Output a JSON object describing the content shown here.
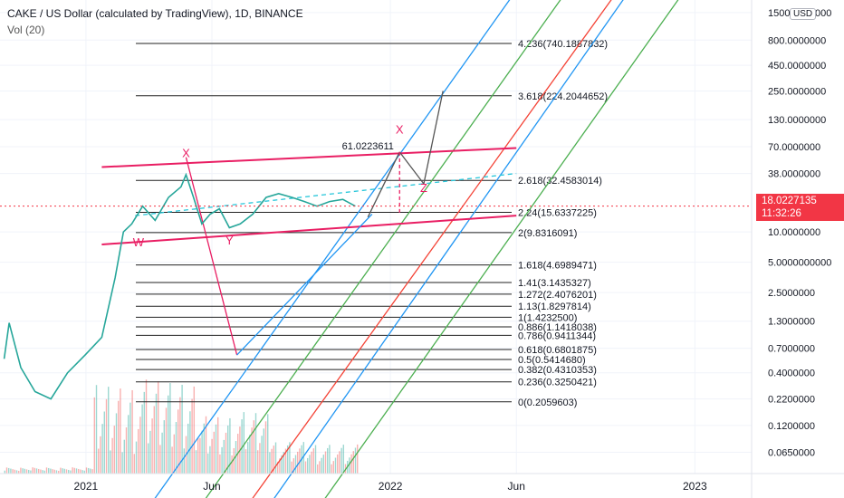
{
  "header": {
    "title": "CAKE / US Dollar (calculated by TradingView), 1D, BINANCE",
    "volume_label": "Vol (20)"
  },
  "price_axis": {
    "currency": "USD",
    "current_price": "18.0227135",
    "countdown": "11:32:26",
    "ticks": [
      "1500.0000000",
      "800.0000000",
      "450.0000000",
      "250.0000000",
      "130.0000000",
      "70.0000000",
      "38.0000000",
      "10.0000000",
      "5.0000000000",
      "2.5000000",
      "1.3000000",
      "0.7000000",
      "0.4000000",
      "0.2200000",
      "0.1200000",
      "0.0650000"
    ]
  },
  "time_axis": {
    "ticks": [
      "2021",
      "Jun",
      "2022",
      "Jun",
      "2023"
    ]
  },
  "chart_data": {
    "type": "line",
    "symbol": "CAKE/USD",
    "interval": "1D",
    "exchange": "BINANCE",
    "yscale": "log",
    "ylim": [
      0.04,
      2000
    ],
    "xlim": [
      "2020-09-20",
      "2023-03-10"
    ],
    "current_price": 18.0227135,
    "price_path": {
      "x": [
        "2020-09-25",
        "2020-10-01",
        "2020-10-15",
        "2020-11-01",
        "2020-11-20",
        "2020-12-10",
        "2020-12-31",
        "2021-01-20",
        "2021-02-05",
        "2021-02-15",
        "2021-02-25",
        "2021-03-10",
        "2021-03-25",
        "2021-04-10",
        "2021-04-25",
        "2021-05-01",
        "2021-05-10",
        "2021-05-20",
        "2021-05-30",
        "2021-06-10",
        "2021-06-22",
        "2021-07-05",
        "2021-07-20",
        "2021-08-05",
        "2021-08-20",
        "2021-09-05",
        "2021-09-20",
        "2021-10-05",
        "2021-10-20",
        "2021-11-05",
        "2021-11-20"
      ],
      "y": [
        0.55,
        1.25,
        0.45,
        0.26,
        0.22,
        0.4,
        0.6,
        0.9,
        3.5,
        10,
        12,
        18,
        13,
        22,
        28,
        37,
        22,
        12,
        15,
        17,
        11,
        12,
        15,
        22,
        24,
        22,
        20,
        18,
        20,
        21,
        18
      ]
    },
    "fibonacci": [
      {
        "level": "0",
        "value": 0.2059603
      },
      {
        "level": "0.236",
        "value": 0.3250421
      },
      {
        "level": "0.382",
        "value": 0.4310353
      },
      {
        "level": "0.5",
        "value": 0.541468
      },
      {
        "level": "0.618",
        "value": 0.6801875
      },
      {
        "level": "0.786",
        "value": 0.9411344
      },
      {
        "level": "0.886",
        "value": 1.1418038
      },
      {
        "level": "1",
        "value": 1.42325
      },
      {
        "level": "1.13",
        "value": 1.8297814
      },
      {
        "level": "1.272",
        "value": 2.4076201
      },
      {
        "level": "1.41",
        "value": 3.1435327
      },
      {
        "level": "1.618",
        "value": 4.6989471
      },
      {
        "level": "2",
        "value": 9.8316091
      },
      {
        "level": "2.24",
        "value": 15.6337225
      },
      {
        "level": "2.618",
        "value": 32.4583014
      },
      {
        "level": "3.618",
        "value": 224.2044652
      },
      {
        "level": "4.236",
        "value": 740.1887832
      }
    ],
    "annotations": [
      {
        "text": "X",
        "x": "2021-05-01",
        "y": 55
      },
      {
        "text": "Y",
        "x": "2021-06-22",
        "y": 7.5
      },
      {
        "text": "W",
        "x": "2021-03-05",
        "y": 7.2
      },
      {
        "text": "X",
        "x": "2022-01-12",
        "y": 95
      },
      {
        "text": "Z",
        "x": "2022-02-10",
        "y": 25
      },
      {
        "text": "61.0223611",
        "x": "2021-12-05",
        "y": 66
      }
    ]
  },
  "colors": {
    "price_line": "#26a69a",
    "fib_line": "#222222",
    "channel": "#e91e63",
    "pitchfork_blue": "#2196f3",
    "pitchfork_green": "#4caf50",
    "pitchfork_red": "#f44336",
    "current_price": "#f23645"
  }
}
